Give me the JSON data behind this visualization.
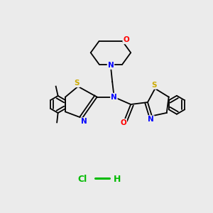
{
  "background_color": "#ebebeb",
  "atom_colors": {
    "C": "#000000",
    "N": "#0000ff",
    "O": "#ff0000",
    "S": "#ccaa00",
    "H": "#000000",
    "Cl": "#00aa00"
  },
  "hcl_color": "#00bb00",
  "bond_color": "#000000"
}
